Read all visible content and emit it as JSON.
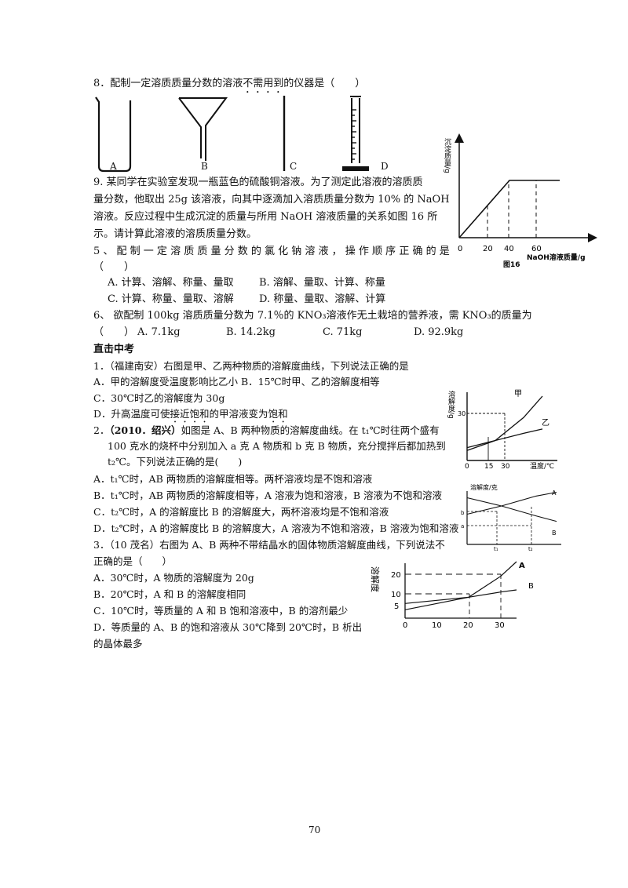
{
  "q8": {
    "line_a": "8．配制一定溶质质量分数的溶液",
    "line_dot": "不需用到",
    "line_b": "的仪器是（　　）",
    "label_a": "A",
    "label_b": "B",
    "label_c": "C",
    "label_d": "D"
  },
  "q9": {
    "line1": "9. 某同学在实验室发现一瓶蓝色的硫酸铜溶液。为了测定此溶液的溶质质",
    "line2": "量分数，他取出 25g 该溶液，向其中逐滴加入溶质质量分数为 10% 的 NaOH",
    "line3": "溶液。反应过程中生成沉淀的质量与所用 NaOH 溶液质量的关系如图 16 所",
    "line4": "示。请计算此溶液的溶质质量分数。"
  },
  "q5": {
    "line1": "5 、 配 制 一 定 溶 质 质 量 分 数 的 氯 化 钠 溶 液 ， 操 作 顺 序 正 确 的 是",
    "line2": "（　　）",
    "opt_a": "A. 计算、溶解、称量、量取",
    "opt_b": "B. 溶解、量取、计算、称量",
    "opt_c": "C. 计算、称量、量取、溶解",
    "opt_d": "D. 称量、量取、溶解、计算"
  },
  "q6": {
    "line1": "6、 欲配制 100kg 溶质质量分数为 7.1％的 KNO₃溶液作无土栽培的营养液，需 KNO₃的质量为",
    "paren": "（　　）",
    "opt_a": "A. 7.1kg",
    "opt_b": "B. 14.2kg",
    "opt_c": "C. 71kg",
    "opt_d": "D. 92.9kg"
  },
  "section": {
    "title": "直击中考"
  },
  "z1": {
    "line1": "1．（福建南安）右图是甲、乙两种物质的溶解度曲线，下列说法正确的是",
    "opt_ab": "A．甲的溶解度受温度影响比乙小 B．15℃时甲、乙的溶解度相等",
    "opt_c": "C．30℃时乙的溶解度为 30g",
    "opt_d_a": "D．升高温度可使",
    "opt_d_dot1": "接近饱和",
    "opt_d_b": "的甲溶液变为",
    "opt_d_dot2": "饱和"
  },
  "z2": {
    "num": "2．",
    "src": "（2010．绍兴）",
    "line1": "如图是 A、B 两种物质的溶解度曲线。在 t₁℃时往两个盛有",
    "line2": "100 克水的烧杯中分别加入 a 克 A 物质和 b 克 B 物质，充分搅拌后都加热到",
    "line3": "t₂℃。下列说法正确的是(　　)",
    "opt_a": "A．t₁℃时，AB 两物质的溶解度相等。两杯溶液均是不饱和溶液",
    "opt_b": "B．t₁℃时，AB 两物质的溶解度相等，A 溶液为饱和溶液，B 溶液为不饱和溶液",
    "opt_c": "C．t₂℃时，A 的溶解度比 B 的溶解度大，两杯溶液均是不饱和溶液",
    "opt_d": "D．t₂℃时，A 的溶解度比 B 的溶解度大，A 溶液为不饱和溶液，B 溶液为饱和溶液"
  },
  "z3": {
    "line1": "3．（10 茂名）右图为 A、B 两种不带结晶水的固体物质溶解度曲线，下列说法不",
    "line2": "正确的是（　　）",
    "opt_a": "A．30℃时，A 物质的溶解度为 20g",
    "opt_b": "B．20℃时，A 和 B 的溶解度相同",
    "opt_c": "C．10℃时，等质量的 A 和 B 饱和溶液中，B 的溶剂最少",
    "opt_d1": "D．等质量的 A、B 的饱和溶液从 30℃降到 20℃时，B 析出",
    "opt_d2": "的晶体最多"
  },
  "fig16": {
    "ylabel": "沉淀质量/g",
    "x_ticks": [
      "0",
      "20",
      "40",
      "60"
    ],
    "xlabel": "NaOH溶液质量/g",
    "caption": "图16"
  },
  "chart_data": [
    {
      "type": "line",
      "x": [
        0,
        40,
        80
      ],
      "values": [
        0,
        1,
        1
      ],
      "xticks": [
        "0",
        "20",
        "40",
        "60"
      ],
      "ylabel": "沉淀质量/g",
      "xlabel": "NaOH溶液质量/g",
      "caption": "图16"
    },
    {
      "type": "line",
      "ylabel": "溶解度/g",
      "xlabel": "温度/℃",
      "yticks": [
        "30"
      ],
      "xticks": [
        "0",
        "15",
        "30"
      ],
      "series": [
        {
          "name": "甲",
          "x": [
            0,
            15,
            30,
            40
          ],
          "values": [
            7,
            14,
            30,
            45
          ]
        },
        {
          "name": "乙",
          "x": [
            0,
            15,
            30,
            40
          ],
          "values": [
            9,
            14,
            19,
            22
          ]
        }
      ]
    },
    {
      "type": "line",
      "ylabel": "溶解度/克",
      "yticks": [
        "b",
        "a"
      ],
      "xticks": [
        "t₁",
        "t₂"
      ],
      "series": [
        {
          "name": "A",
          "x": [
            0,
            1,
            2,
            2.6
          ],
          "values": [
            0.55,
            0.7,
            0.88,
            0.95
          ]
        },
        {
          "name": "B",
          "x": [
            0,
            1,
            2,
            2.6
          ],
          "values": [
            0.85,
            0.7,
            0.52,
            0.42
          ]
        }
      ]
    },
    {
      "type": "line",
      "ylabel": "溶解度",
      "yticks": [
        "5",
        "10",
        "20"
      ],
      "xticks": [
        "0",
        "10",
        "20",
        "30"
      ],
      "series": [
        {
          "name": "A",
          "x": [
            0,
            10,
            20,
            30,
            35
          ],
          "values": [
            4,
            7,
            10,
            20,
            27
          ]
        },
        {
          "name": "B",
          "x": [
            0,
            10,
            20,
            30,
            35
          ],
          "values": [
            7,
            8.5,
            10,
            12.5,
            13.5
          ]
        }
      ]
    }
  ],
  "fig_z1": {
    "ylabel": "溶解度/g",
    "ytick": "30",
    "xticks": [
      "0",
      "15",
      "30"
    ],
    "xlabel": "温度/℃",
    "series_a": "甲",
    "series_b": "乙"
  },
  "fig_z2": {
    "ylabel": "溶解度/克",
    "yticks": [
      "b",
      "a"
    ],
    "xticks": [
      "t₁",
      "t₂"
    ],
    "series_a": "A",
    "series_b": "B"
  },
  "fig_z3": {
    "ylabel": "溶解度",
    "yticks": [
      "20",
      "10",
      "5"
    ],
    "xticks": [
      "0",
      "10",
      "20",
      "30"
    ],
    "series_a": "A",
    "series_b": "B"
  },
  "footer": {
    "page_number": "70"
  }
}
